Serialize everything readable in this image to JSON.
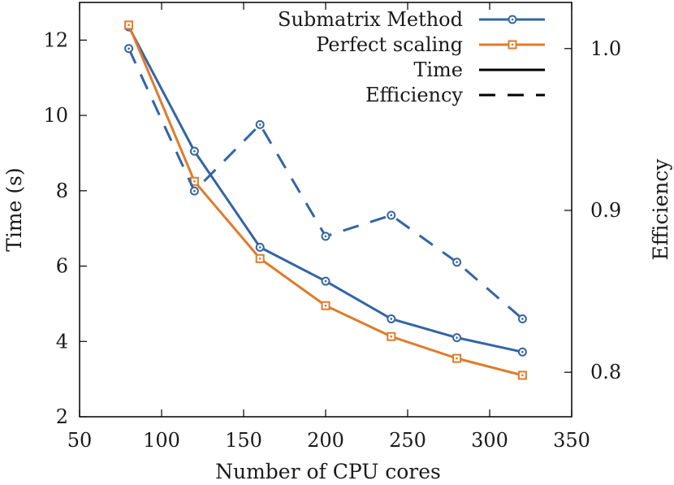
{
  "chart_data": {
    "type": "line",
    "x": [
      80,
      120,
      160,
      200,
      240,
      280,
      320
    ],
    "xlabel": "Number of CPU cores",
    "ylabel": "Time (s)",
    "y2label": "Efficiency",
    "xlim": [
      50,
      350
    ],
    "ylim": [
      2,
      13
    ],
    "y2lim": [
      0.7725,
      1.0285
    ],
    "xticks": [
      "50",
      "100",
      "150",
      "200",
      "250",
      "300",
      "350"
    ],
    "yticks": [
      "2",
      "4",
      "6",
      "8",
      "10",
      "12"
    ],
    "y2ticks": [
      "0.8",
      "0.9",
      "1.0"
    ],
    "grid": false,
    "legend_position": "top-right",
    "series": [
      {
        "name": "Submatrix Method",
        "metric": "Time",
        "axis": "left",
        "color": "#3465a4",
        "marker": "circle",
        "linestyle": "solid",
        "values": [
          12.35,
          9.05,
          6.5,
          5.6,
          4.6,
          4.1,
          3.72
        ]
      },
      {
        "name": "Perfect scaling",
        "metric": "Time",
        "axis": "left",
        "color": "#e07b2b",
        "marker": "square",
        "linestyle": "solid",
        "values": [
          12.4,
          8.25,
          6.2,
          4.95,
          4.13,
          3.55,
          3.1
        ]
      },
      {
        "name": "Submatrix Method",
        "metric": "Efficiency",
        "axis": "right",
        "color": "#3465a4",
        "marker": "circle",
        "linestyle": "dashed",
        "values": [
          1.0,
          0.912,
          0.953,
          0.884,
          0.897,
          0.868,
          0.833
        ]
      }
    ],
    "legend": [
      {
        "label": "Submatrix Method",
        "style": "line-circle",
        "color": "#3465a4"
      },
      {
        "label": "Perfect scaling",
        "style": "line-square",
        "color": "#e07b2b"
      },
      {
        "label": "Time",
        "style": "solid",
        "color": "#000000"
      },
      {
        "label": "Efficiency",
        "style": "dashed",
        "color": "#000000"
      }
    ]
  }
}
